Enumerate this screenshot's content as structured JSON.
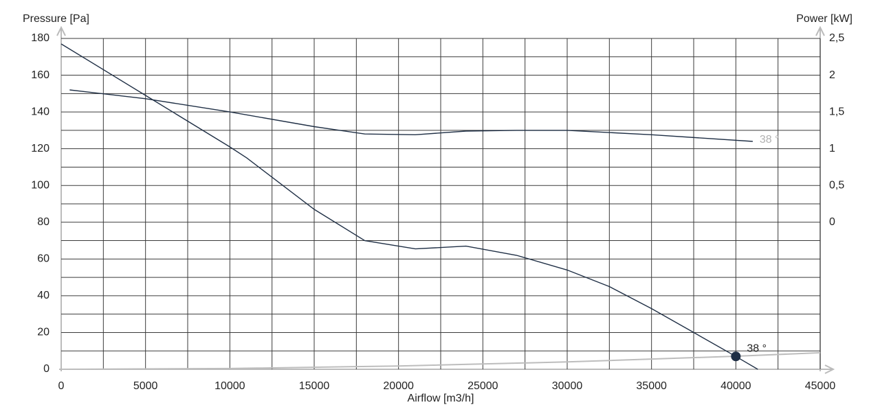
{
  "chart_data": {
    "type": "line",
    "y_label": "Pressure [Pa]",
    "y2_label": "Power [kW]",
    "x_label": "Airflow [m3/h]",
    "xlim": [
      0,
      45000
    ],
    "xticks": [
      0,
      5000,
      10000,
      15000,
      20000,
      25000,
      30000,
      35000,
      40000,
      45000
    ],
    "xminorticks": [
      2500,
      7500,
      12500,
      17500,
      22500,
      27500,
      32500,
      37500,
      42500
    ],
    "ylim": [
      0,
      180
    ],
    "yticks": [
      0,
      20,
      40,
      60,
      80,
      100,
      120,
      140,
      160,
      180
    ],
    "yminorticks": [
      10,
      30,
      50,
      70,
      90,
      110,
      130,
      150,
      170
    ],
    "y2lim": [
      -2,
      2.5
    ],
    "y2ticks": [
      0,
      {
        "value": 0.5,
        "label": "0,5"
      },
      1,
      {
        "value": 1.5,
        "label": "1,5"
      },
      2,
      {
        "value": 2.5,
        "label": "2,5"
      }
    ],
    "grid": true,
    "series": [
      {
        "color": "#1f2f45",
        "x": [
          0,
          5000,
          10000,
          11000,
          15000,
          18000,
          21000,
          24000,
          27000,
          30000,
          32500,
          35000,
          37500,
          40000,
          41300
        ],
        "values": [
          177,
          149,
          121,
          115,
          87,
          70,
          65.5,
          67,
          62,
          54,
          45,
          33,
          20,
          7,
          0
        ]
      },
      {
        "name": "38 °",
        "axis": "y2",
        "color": "#1f2f45",
        "label_color": "#b0b0b0",
        "x": [
          500,
          5000,
          10000,
          15000,
          18000,
          21000,
          24000,
          27000,
          30000,
          35000,
          41000
        ],
        "values": [
          1.8,
          1.68,
          1.5,
          1.3,
          1.2,
          1.19,
          1.24,
          1.25,
          1.25,
          1.19,
          1.1
        ]
      },
      {
        "color": "#bdbdbd",
        "x": [
          0,
          10000,
          20000,
          30000,
          40000,
          45000
        ],
        "values": [
          0,
          0.4,
          1.8,
          4,
          7.1,
          9
        ]
      }
    ],
    "points": [
      {
        "x": 40000,
        "y": 7,
        "label": "38 °",
        "color": "#1f2f45"
      }
    ]
  }
}
